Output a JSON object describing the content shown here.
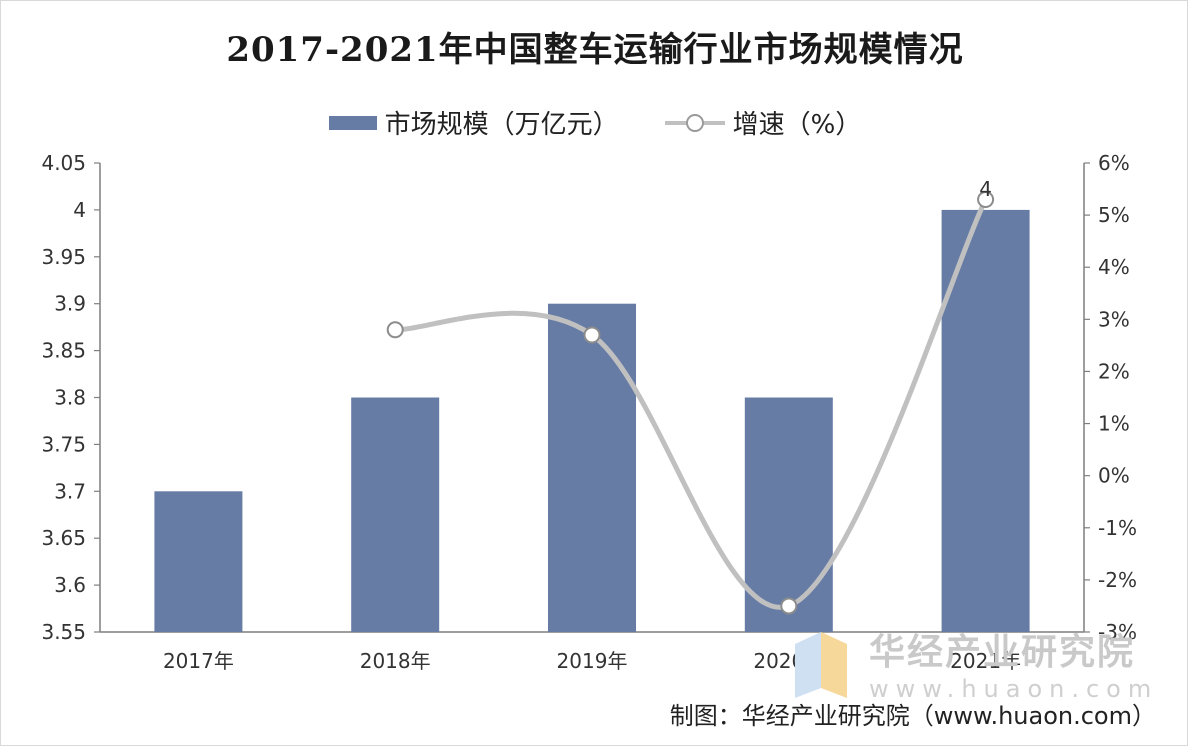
{
  "title": "2017-2021年中国整车运输行业市场规模情况",
  "legend": {
    "bar_label": "市场规模（万亿元）",
    "line_label": "增速（%）"
  },
  "colors": {
    "bar": "#667ca5",
    "line": "#c0c0c0",
    "marker_stroke": "#8c8c8c",
    "axis": "#7f7f7f"
  },
  "chart_data": {
    "type": "bar",
    "categories": [
      "2017年",
      "2018年",
      "2019年",
      "2020年",
      "2021年"
    ],
    "series": [
      {
        "name": "市场规模（万亿元）",
        "type": "bar",
        "axis": "left",
        "values": [
          3.7,
          3.8,
          3.9,
          3.8,
          4
        ]
      },
      {
        "name": "增速（%）",
        "type": "line",
        "axis": "right",
        "smooth": true,
        "values": [
          null,
          2.8,
          2.7,
          -2.5,
          5.3
        ]
      }
    ],
    "data_labels": [
      {
        "category": "2021年",
        "series": "市场规模（万亿元）",
        "text": "4"
      }
    ],
    "y_left": {
      "min": 3.55,
      "max": 4.05,
      "ticks": [
        "3.55",
        "3.6",
        "3.65",
        "3.7",
        "3.75",
        "3.8",
        "3.85",
        "3.9",
        "3.95",
        "4",
        "4.05"
      ]
    },
    "y_right": {
      "min": -3,
      "max": 6,
      "ticks": [
        "-3%",
        "-2%",
        "-1%",
        "0%",
        "1%",
        "2%",
        "3%",
        "4%",
        "5%",
        "6%"
      ]
    },
    "grid": false,
    "legend_position": "top"
  },
  "watermark": {
    "name": "华经产业研究院",
    "url": "www.huaon.com"
  },
  "credit": "制图：华经产业研究院（www.huaon.com）"
}
